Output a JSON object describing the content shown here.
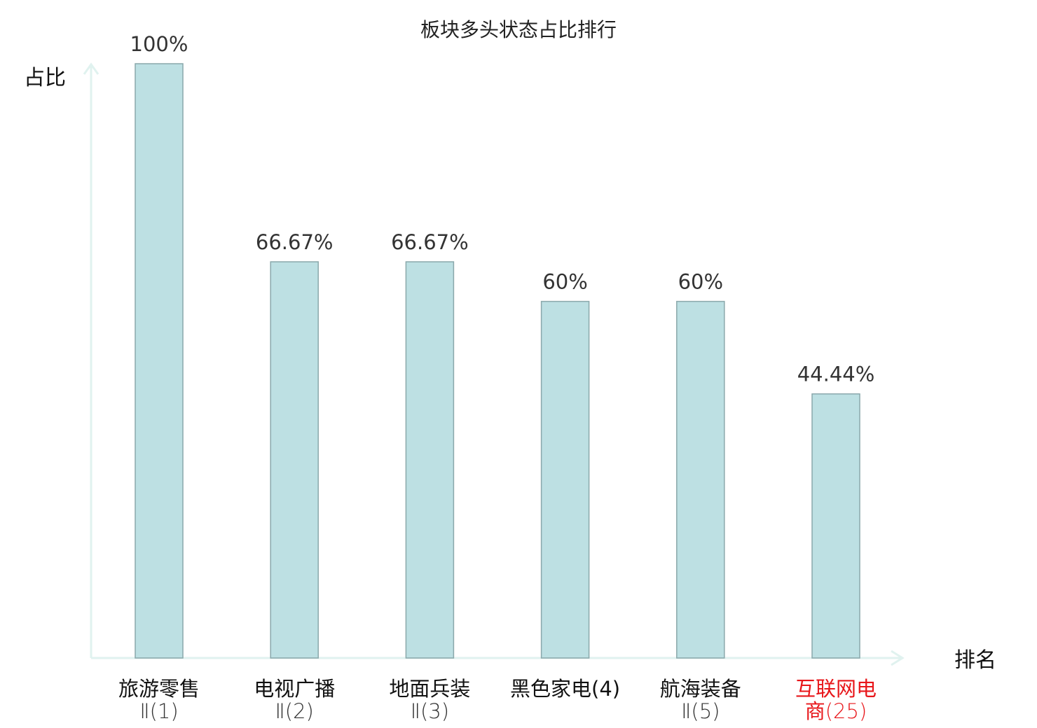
{
  "chart_data": {
    "type": "bar",
    "title": "板块多头状态占比排行",
    "xlabel": "排名",
    "ylabel": "占比",
    "ylim": [
      0,
      100
    ],
    "grid": false,
    "categories": [
      {
        "line1": "旅游零售",
        "line2": "Ⅱ(1)",
        "highlight": false
      },
      {
        "line1": "电视广播",
        "line2": "Ⅱ(2)",
        "highlight": false
      },
      {
        "line1": "地面兵装",
        "line2": "Ⅱ(3)",
        "highlight": false
      },
      {
        "line1": "黑色家电(4)",
        "line2": "",
        "highlight": false
      },
      {
        "line1": "航海装备",
        "line2": "Ⅱ(5)",
        "highlight": false
      },
      {
        "line1": "互联网电",
        "line2": "商(25)",
        "highlight": true
      }
    ],
    "values": [
      100,
      66.67,
      66.67,
      60,
      60,
      44.44
    ],
    "value_labels": [
      "100%",
      "66.67%",
      "66.67%",
      "60%",
      "60%",
      "44.44%"
    ],
    "colors": {
      "bar_fill": "#bde0e3",
      "bar_stroke": "#8aa8ab",
      "axis": "#e0f2ef",
      "highlight_text": "#e8161a",
      "normal_text": "#111111",
      "sub_text": "#333333"
    }
  }
}
